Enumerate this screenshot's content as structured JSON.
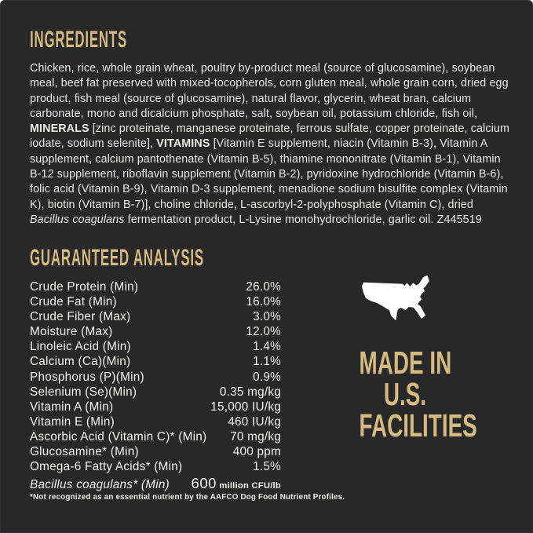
{
  "colors": {
    "background": "#282828",
    "gold": "#d5bb82",
    "text": "#ebebe9",
    "map_fill": "#ffffff"
  },
  "ingredients": {
    "heading": "INGREDIENTS",
    "segments": [
      {
        "t": "Chicken, rice, whole grain wheat, poultry by-product meal (source of glucosamine), soybean meal, beef fat preserved with mixed-tocopherols, corn gluten meal, whole grain corn, dried egg product, fish meal (source of glucosamine), natural flavor, glycerin, wheat bran, calcium carbonate, mono and dicalcium phosphate, salt, soybean oil, potassium chloride, fish oil, ",
        "s": "normal"
      },
      {
        "t": "MINERALS",
        "s": "bold"
      },
      {
        "t": " [zinc proteinate, manganese proteinate, ferrous sulfate, copper proteinate, calcium iodate, sodium selenite], ",
        "s": "normal"
      },
      {
        "t": "VITAMINS",
        "s": "bold"
      },
      {
        "t": " [Vitamin E supplement, niacin (Vitamin B-3), Vitamin A supplement, calcium pantothenate (Vitamin B-5), thiamine mononitrate (Vitamin B-1), Vitamin B-12 supplement, riboflavin supplement (Vitamin B-2), pyridoxine hydrochloride (Vitamin B-6), folic acid (Vitamin B-9), Vitamin D-3 supplement, menadione sodium bisulfite complex (Vitamin K), biotin (Vitamin B-7)], choline chloride, L-ascorbyl-2-polyphosphate (Vitamin C), dried ",
        "s": "normal"
      },
      {
        "t": "Bacillus coagulans",
        "s": "italic"
      },
      {
        "t": " fermentation product, L-Lysine monohydrochloride, garlic oil. Z445519",
        "s": "normal"
      }
    ]
  },
  "analysis": {
    "heading": "GUARANTEED ANALYSIS",
    "rows": [
      {
        "label": "Crude Protein (Min)",
        "value": "26.0%"
      },
      {
        "label": "Crude Fat (Min)",
        "value": "16.0%"
      },
      {
        "label": "Crude Fiber (Max)",
        "value": "3.0%"
      },
      {
        "label": "Moisture (Max)",
        "value": "12.0%"
      },
      {
        "label": "Linoleic Acid (Min)",
        "value": "1.4%"
      },
      {
        "label": "Calcium (Ca)(Min)",
        "value": "1.1%"
      },
      {
        "label": "Phosphorus (P)(Min)",
        "value": "0.9%"
      },
      {
        "label": "Selenium (Se)(Min)",
        "value": "0.35 mg/kg"
      },
      {
        "label": "Vitamin A (Min)",
        "value": "15,000 IU/kg"
      },
      {
        "label": "Vitamin E (Min)",
        "value": "460 IU/kg"
      },
      {
        "label": "Ascorbic Acid (Vitamin C)* (Min)",
        "value": "70 mg/kg"
      },
      {
        "label": "Glucosamine* (Min)",
        "value": "400 ppm"
      },
      {
        "label": "Omega-6 Fatty Acids* (Min)",
        "value": "1.5%"
      },
      {
        "label": "Bacillus coagulans* (Min)",
        "label_italic": true,
        "value": "600",
        "value_suffix": " million CFU/lb"
      }
    ],
    "footnote": "*Not recognized as an essential nutrient by the AAFCO Dog Food Nutrient Profiles."
  },
  "badge": {
    "map_icon": "usa-map",
    "lines": [
      "MADE IN",
      "U.S.",
      "FACILITIES"
    ]
  }
}
